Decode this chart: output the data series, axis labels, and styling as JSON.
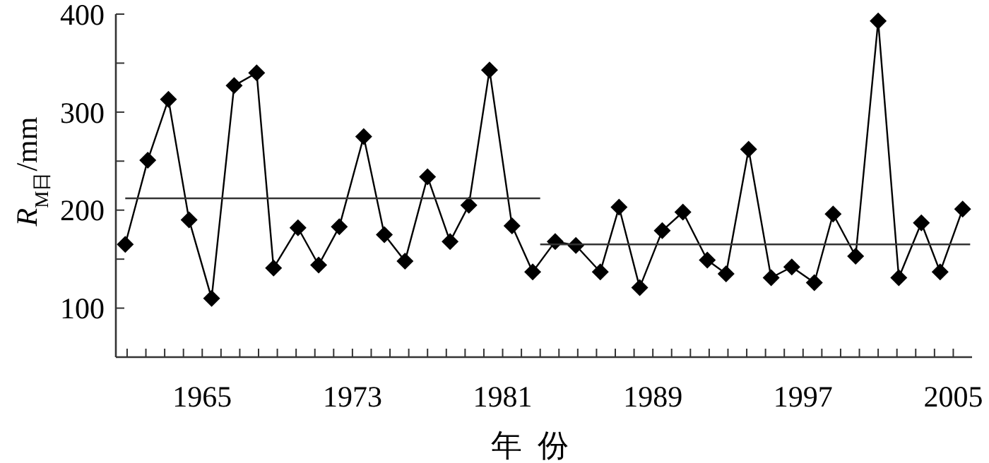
{
  "chart_data": {
    "type": "line",
    "xlabel": "年  份",
    "ylabel": "R$_{M日}$/mm",
    "xlim": [
      1960.4,
      2006
    ],
    "ylim": [
      50,
      400
    ],
    "xticks": [
      {
        "value": 1961,
        "label": null
      },
      {
        "value": 1962,
        "label": null
      },
      {
        "value": 1963,
        "label": null
      },
      {
        "value": 1964,
        "label": null
      },
      1965,
      {
        "value": 1966,
        "label": null
      },
      {
        "value": 1967,
        "label": null
      },
      {
        "value": 1968,
        "label": null
      },
      {
        "value": 1969,
        "label": null
      },
      {
        "value": 1970,
        "label": null
      },
      {
        "value": 1971,
        "label": null
      },
      {
        "value": 1972,
        "label": null
      },
      1973,
      {
        "value": 1974,
        "label": null
      },
      {
        "value": 1975,
        "label": null
      },
      {
        "value": 1976,
        "label": null
      },
      {
        "value": 1977,
        "label": null
      },
      {
        "value": 1978,
        "label": null
      },
      {
        "value": 1979,
        "label": null
      },
      {
        "value": 1980,
        "label": null
      },
      1981,
      {
        "value": 1982,
        "label": null
      },
      {
        "value": 1983,
        "label": null
      },
      {
        "value": 1984,
        "label": null
      },
      {
        "value": 1985,
        "label": null
      },
      {
        "value": 1986,
        "label": null
      },
      {
        "value": 1987,
        "label": null
      },
      {
        "value": 1988,
        "label": null
      },
      1989,
      {
        "value": 1990,
        "label": null
      },
      {
        "value": 1991,
        "label": null
      },
      {
        "value": 1992,
        "label": null
      },
      {
        "value": 1993,
        "label": null
      },
      {
        "value": 1994,
        "label": null
      },
      {
        "value": 1995,
        "label": null
      },
      {
        "value": 1996,
        "label": null
      },
      1997,
      {
        "value": 1998,
        "label": null
      },
      {
        "value": 1999,
        "label": null
      },
      {
        "value": 2000,
        "label": null
      },
      {
        "value": 2001,
        "label": null
      },
      {
        "value": 2002,
        "label": null
      },
      {
        "value": 2003,
        "label": null
      },
      {
        "value": 2004,
        "label": null
      },
      2005
    ],
    "yticks": [
      100,
      {
        "value": 150,
        "label": null
      },
      200,
      {
        "value": 250,
        "label": null
      },
      300,
      {
        "value": 350,
        "label": null
      },
      400
    ],
    "grid": false,
    "series": [
      {
        "color": "#000000",
        "marker": "diamond",
        "x": [
          1960.9,
          1962.1,
          1963.2,
          1964.3,
          1965.5,
          1966.7,
          1967.9,
          1968.8,
          1970.1,
          1971.2,
          1972.3,
          1973.6,
          1974.7,
          1975.8,
          1977.0,
          1978.2,
          1979.2,
          1980.3,
          1981.5,
          1982.6,
          1983.8,
          1984.9,
          1986.2,
          1987.2,
          1988.3,
          1989.5,
          1990.6,
          1991.9,
          1992.9,
          1994.1,
          1995.3,
          1996.4,
          1997.6,
          1998.6,
          1999.8,
          2001.0,
          2002.1,
          2003.3,
          2004.3,
          2005.5
        ],
        "values": [
          165,
          251,
          313,
          190,
          110,
          327,
          340,
          141,
          182,
          144,
          183,
          275,
          175,
          148,
          234,
          168,
          205,
          343,
          184,
          137,
          168,
          164,
          137,
          203,
          121,
          179,
          198,
          149,
          135,
          262,
          131,
          142,
          126,
          196,
          153,
          393,
          131,
          187,
          137,
          201
        ]
      },
      {
        "color": "#333333",
        "marker": "none",
        "x": [
          1960.9,
          1983.0
        ],
        "values": [
          212,
          212
        ]
      },
      {
        "color": "#333333",
        "marker": "none",
        "x": [
          1983.0,
          2005.9
        ],
        "values": [
          165,
          165
        ]
      }
    ]
  }
}
